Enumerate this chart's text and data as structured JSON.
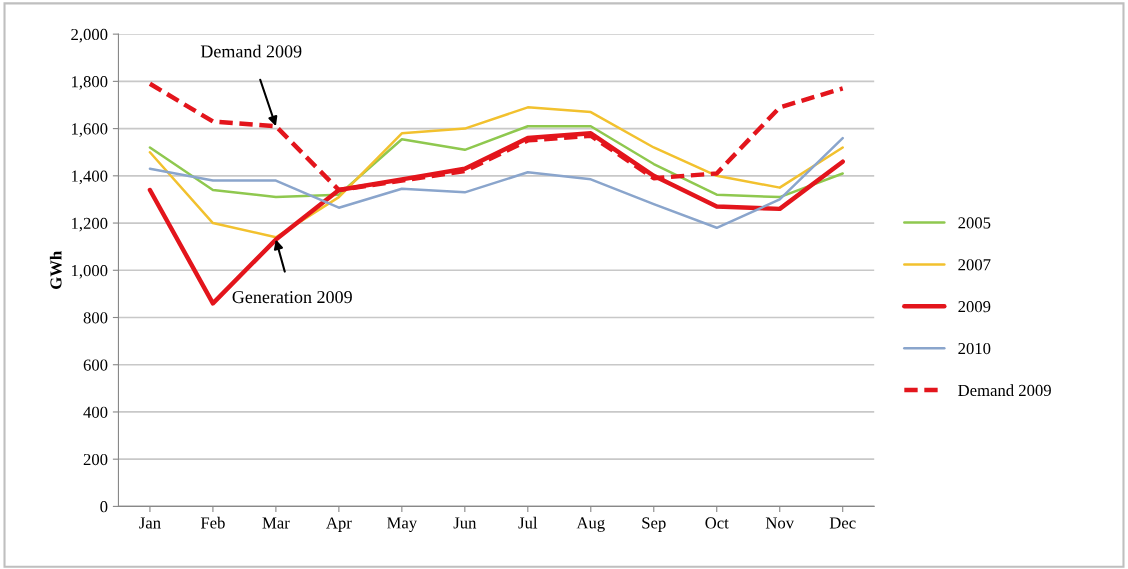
{
  "chart_data": {
    "type": "line",
    "ylabel": "GWh",
    "categories": [
      "Jan",
      "Feb",
      "Mar",
      "Apr",
      "May",
      "Jun",
      "Jul",
      "Aug",
      "Sep",
      "Oct",
      "Nov",
      "Dec"
    ],
    "series": [
      {
        "name": "2005",
        "color": "#8fc84f",
        "values": [
          1520,
          1340,
          1310,
          1320,
          1555,
          1510,
          1610,
          1610,
          1450,
          1320,
          1310,
          1410
        ]
      },
      {
        "name": "2007",
        "color": "#f2c12e",
        "values": [
          1500,
          1200,
          1140,
          1310,
          1580,
          1600,
          1690,
          1670,
          1520,
          1400,
          1350,
          1520
        ]
      },
      {
        "name": "2009",
        "color": "#e3151c",
        "values": [
          1340,
          860,
          1130,
          1340,
          1385,
          1430,
          1560,
          1580,
          1400,
          1270,
          1260,
          1460
        ]
      },
      {
        "name": "2010",
        "color": "#8aa5cc",
        "values": [
          1430,
          1380,
          1380,
          1265,
          1345,
          1330,
          1415,
          1385,
          1280,
          1180,
          1300,
          1560
        ]
      },
      {
        "name": "Demand 2009",
        "color": "#e3151c",
        "line_style": "dashed",
        "values": [
          1790,
          1630,
          1610,
          1340,
          1380,
          1420,
          1550,
          1570,
          1390,
          1410,
          1690,
          1770
        ]
      }
    ],
    "ylim": [
      0,
      2000
    ],
    "yticks": [
      {
        "value": 0,
        "label": "0"
      },
      {
        "value": 200,
        "label": "200"
      },
      {
        "value": 400,
        "label": "400"
      },
      {
        "value": 600,
        "label": "600"
      },
      {
        "value": 800,
        "label": "800"
      },
      {
        "value": 1000,
        "label": "1,000"
      },
      {
        "value": 1200,
        "label": "1,200"
      },
      {
        "value": 1400,
        "label": "1,400"
      },
      {
        "value": 1600,
        "label": "1,600"
      },
      {
        "value": 1800,
        "label": "1,800"
      },
      {
        "value": 2000,
        "label": "2,000"
      }
    ],
    "grid": "y",
    "legend": "right",
    "line_style": "solid",
    "annotations": [
      {
        "text": "Demand 2009",
        "x": "Mar",
        "y": 1610
      },
      {
        "text": "Generation 2009",
        "x": "Mar",
        "y": 1130
      }
    ]
  }
}
